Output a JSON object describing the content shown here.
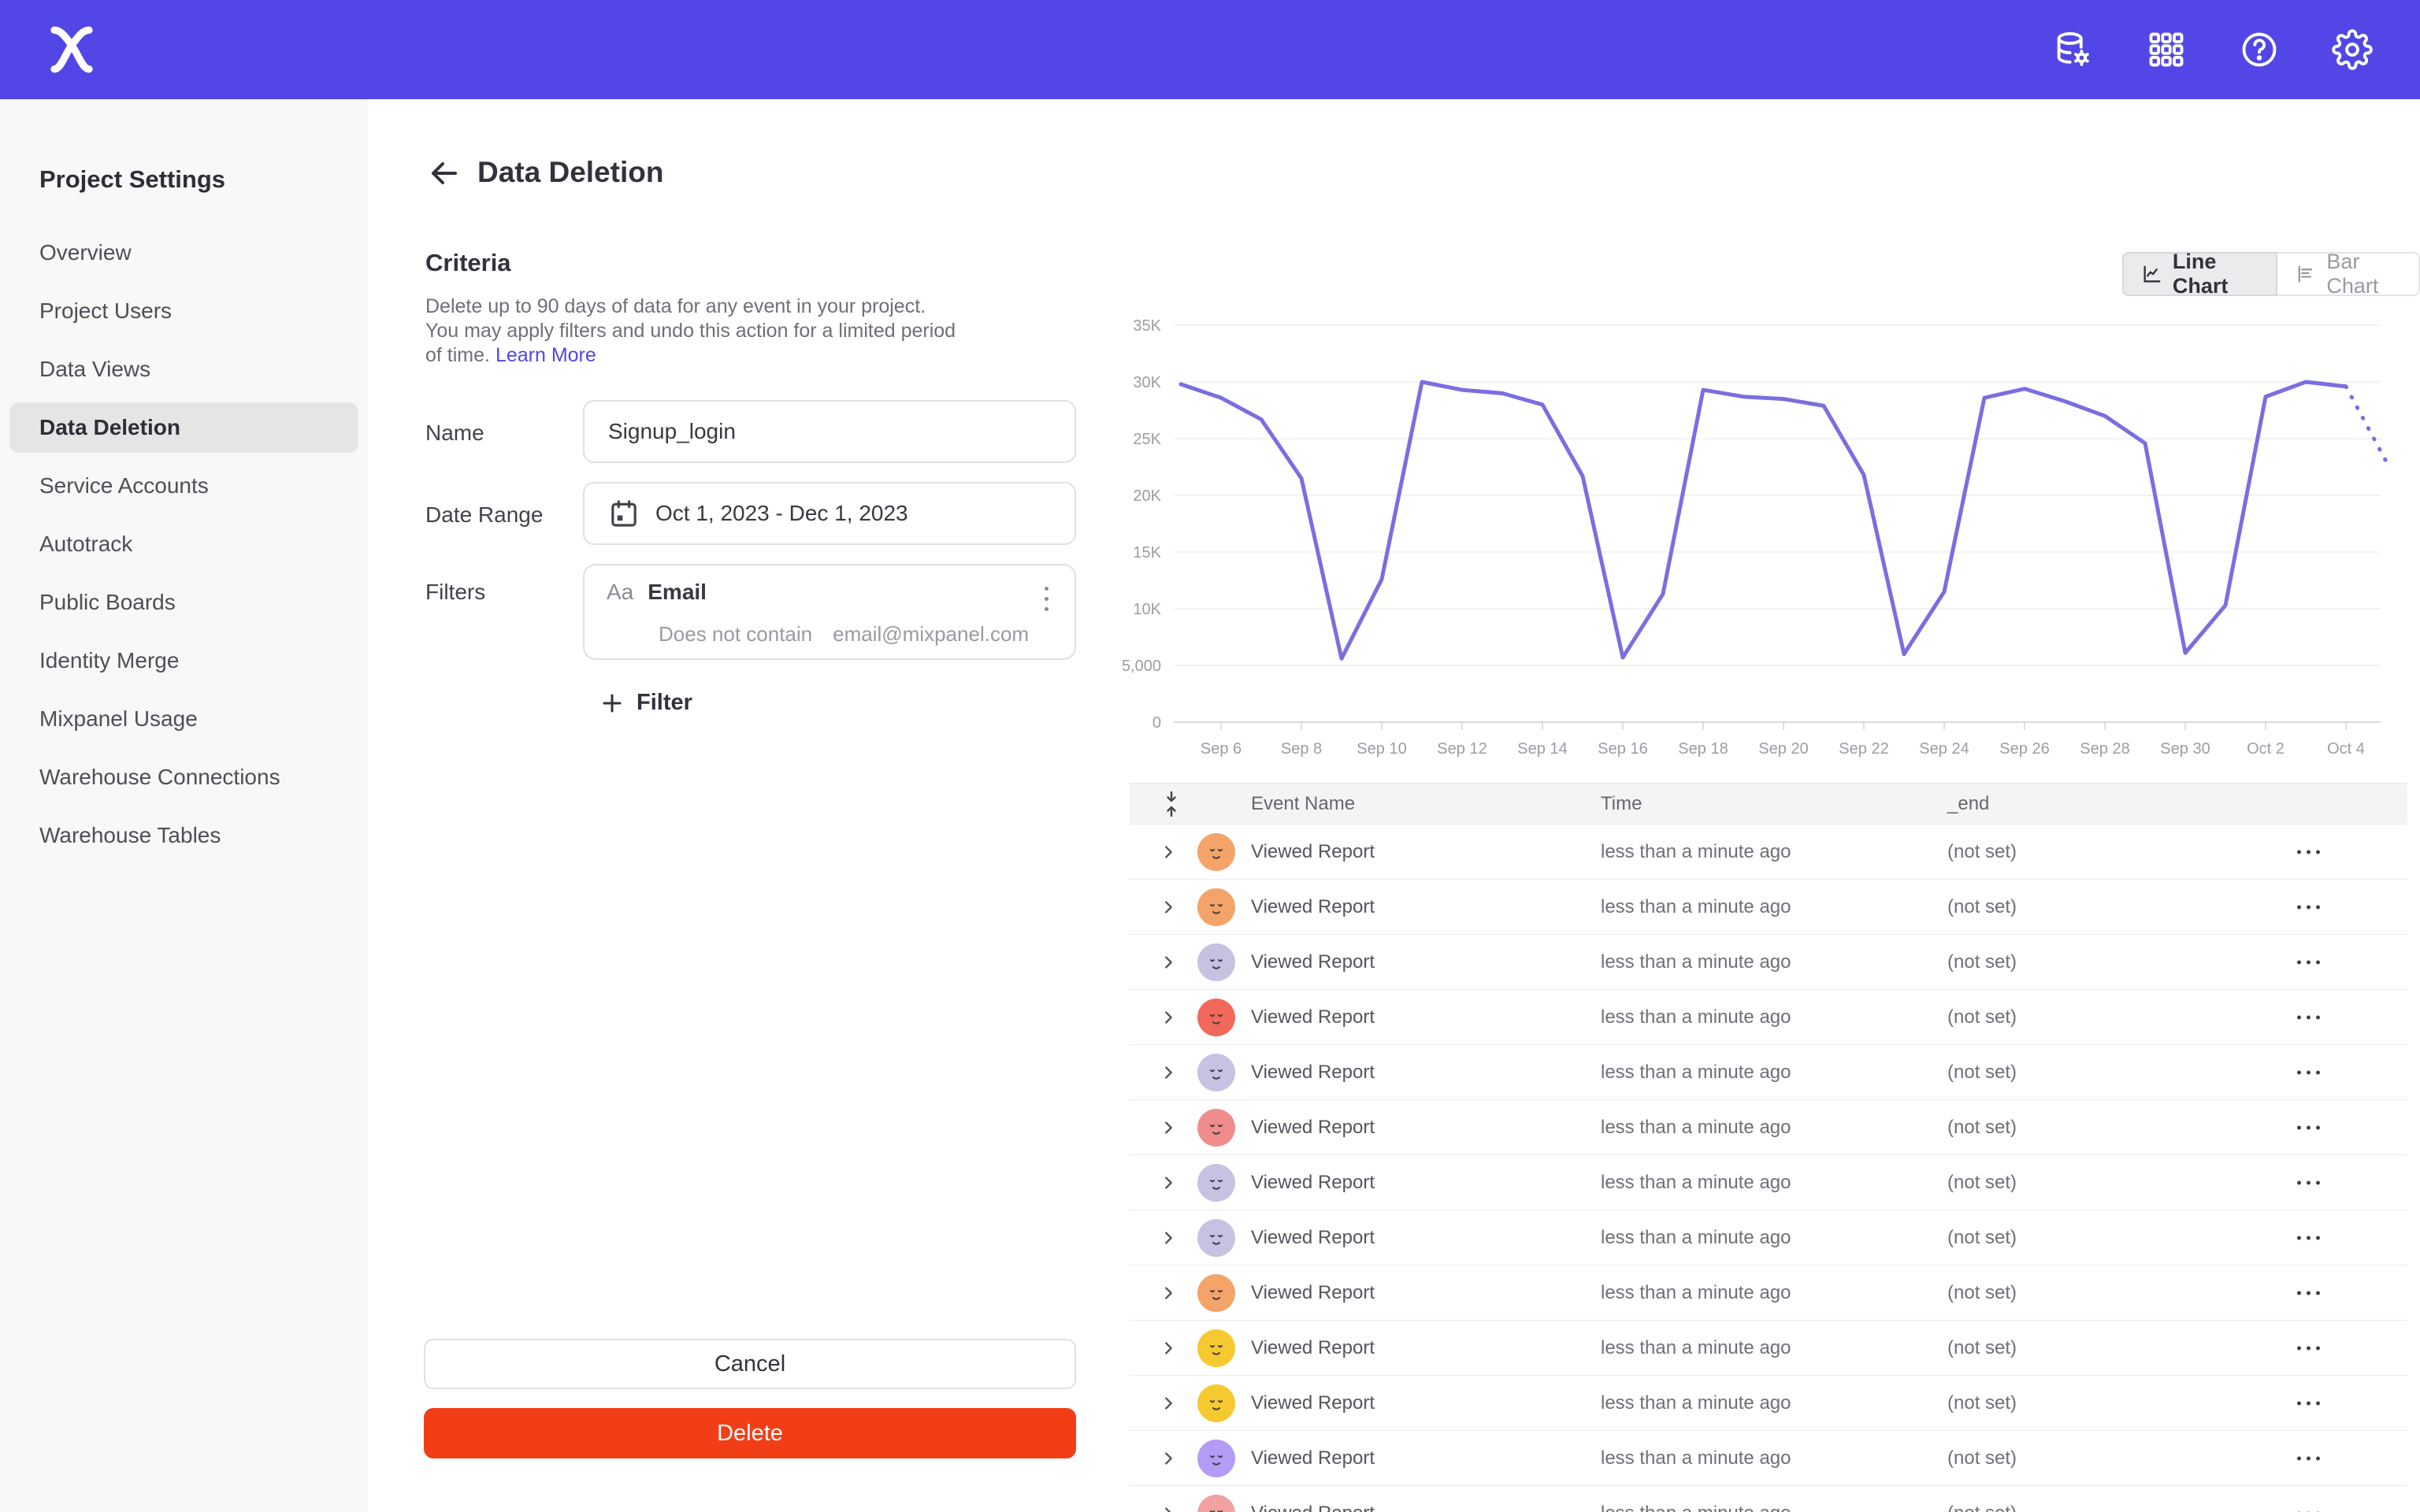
{
  "header": {
    "logo": "mixpanel",
    "icons": [
      "data-management-icon",
      "apps-grid-icon",
      "help-icon",
      "settings-gear-icon"
    ],
    "color": "#5246E6"
  },
  "sidebar": {
    "title": "Project Settings",
    "items": [
      {
        "label": "Overview",
        "active": false
      },
      {
        "label": "Project Users",
        "active": false
      },
      {
        "label": "Data Views",
        "active": false
      },
      {
        "label": "Data Deletion",
        "active": true
      },
      {
        "label": "Service Accounts",
        "active": false
      },
      {
        "label": "Autotrack",
        "active": false
      },
      {
        "label": "Public Boards",
        "active": false
      },
      {
        "label": "Identity Merge",
        "active": false
      },
      {
        "label": "Mixpanel Usage",
        "active": false
      },
      {
        "label": "Warehouse Connections",
        "active": false
      },
      {
        "label": "Warehouse Tables",
        "active": false
      }
    ]
  },
  "page": {
    "title": "Data Deletion"
  },
  "criteria": {
    "heading": "Criteria",
    "description": "Delete up to 90 days of data for any event in your project. You may apply filters and undo this action for a limited period of time.",
    "learn_more": "Learn More",
    "name_label": "Name",
    "name_value": "Signup_login",
    "date_label": "Date Range",
    "date_value": "Oct 1, 2023 - Dec 1, 2023",
    "filters_label": "Filters",
    "filter": {
      "type_glyph": "Aa",
      "property": "Email",
      "operator": "Does not contain",
      "value": "email@mixpanel.com"
    },
    "add_filter_label": "Filter"
  },
  "actions": {
    "cancel_label": "Cancel",
    "delete_label": "Delete"
  },
  "chart_toggle": {
    "line_label": "Line Chart",
    "bar_label": "Bar Chart",
    "active": "line"
  },
  "chart_data": {
    "type": "line",
    "title": "",
    "xlabel": "",
    "ylabel": "",
    "line_color": "#7A6EE0",
    "grid": true,
    "ylim": [
      0,
      35000
    ],
    "ytick_labels": [
      "0",
      "5,000",
      "10K",
      "15K",
      "20K",
      "25K",
      "30K",
      "35K"
    ],
    "ytick_values": [
      0,
      5000,
      10000,
      15000,
      20000,
      25000,
      30000,
      35000
    ],
    "xtick_labels": [
      "Sep 6",
      "Sep 8",
      "Sep 10",
      "Sep 12",
      "Sep 14",
      "Sep 16",
      "Sep 18",
      "Sep 20",
      "Sep 22",
      "Sep 24",
      "Sep 26",
      "Sep 28",
      "Sep 30",
      "Oct 2",
      "Oct 4"
    ],
    "x": [
      "Sep 5",
      "Sep 6",
      "Sep 7",
      "Sep 8",
      "Sep 9",
      "Sep 10",
      "Sep 11",
      "Sep 12",
      "Sep 13",
      "Sep 14",
      "Sep 15",
      "Sep 16",
      "Sep 17",
      "Sep 18",
      "Sep 19",
      "Sep 20",
      "Sep 21",
      "Sep 22",
      "Sep 23",
      "Sep 24",
      "Sep 25",
      "Sep 26",
      "Sep 27",
      "Sep 28",
      "Sep 29",
      "Sep 30",
      "Oct 1",
      "Oct 2",
      "Oct 3",
      "Oct 4",
      "Oct 5"
    ],
    "values": [
      29800,
      28600,
      26700,
      21500,
      5600,
      12600,
      30000,
      29300,
      29000,
      28000,
      21700,
      5700,
      11300,
      29300,
      28700,
      28500,
      27900,
      21800,
      6000,
      11500,
      28600,
      29400,
      28300,
      27000,
      24600,
      6100,
      10300,
      28700,
      30000,
      29600,
      23000
    ],
    "dashed_from_index": 29,
    "legend": []
  },
  "table": {
    "columns": [
      "Event Name",
      "Time",
      "_end"
    ],
    "rows": [
      {
        "avatar_color": "#F4A369",
        "event": "Viewed Report",
        "time": "less than a minute ago",
        "end": "(not set)",
        "partial": false
      },
      {
        "avatar_color": "#F4A369",
        "event": "Viewed Report",
        "time": "less than a minute ago",
        "end": "(not set)",
        "partial": false
      },
      {
        "avatar_color": "#C7C2E2",
        "event": "Viewed Report",
        "time": "less than a minute ago",
        "end": "(not set)",
        "partial": false
      },
      {
        "avatar_color": "#F2685B",
        "event": "Viewed Report",
        "time": "less than a minute ago",
        "end": "(not set)",
        "partial": false
      },
      {
        "avatar_color": "#C7C2E2",
        "event": "Viewed Report",
        "time": "less than a minute ago",
        "end": "(not set)",
        "partial": false
      },
      {
        "avatar_color": "#F08C8C",
        "event": "Viewed Report",
        "time": "less than a minute ago",
        "end": "(not set)",
        "partial": false
      },
      {
        "avatar_color": "#C7C2E2",
        "event": "Viewed Report",
        "time": "less than a minute ago",
        "end": "(not set)",
        "partial": false
      },
      {
        "avatar_color": "#C7C2E2",
        "event": "Viewed Report",
        "time": "less than a minute ago",
        "end": "(not set)",
        "partial": false
      },
      {
        "avatar_color": "#F4A369",
        "event": "Viewed Report",
        "time": "less than a minute ago",
        "end": "(not set)",
        "partial": false
      },
      {
        "avatar_color": "#F7C931",
        "event": "Viewed Report",
        "time": "less than a minute ago",
        "end": "(not set)",
        "partial": false
      },
      {
        "avatar_color": "#F7C931",
        "event": "Viewed Report",
        "time": "less than a minute ago",
        "end": "(not set)",
        "partial": false
      },
      {
        "avatar_color": "#B49CF6",
        "event": "Viewed Report",
        "time": "less than a minute ago",
        "end": "(not set)",
        "partial": false
      },
      {
        "avatar_color": "#F2A0A0",
        "event": "Viewed Report",
        "time": "less than a minute ago",
        "end": "(not set)",
        "partial": true
      }
    ]
  }
}
